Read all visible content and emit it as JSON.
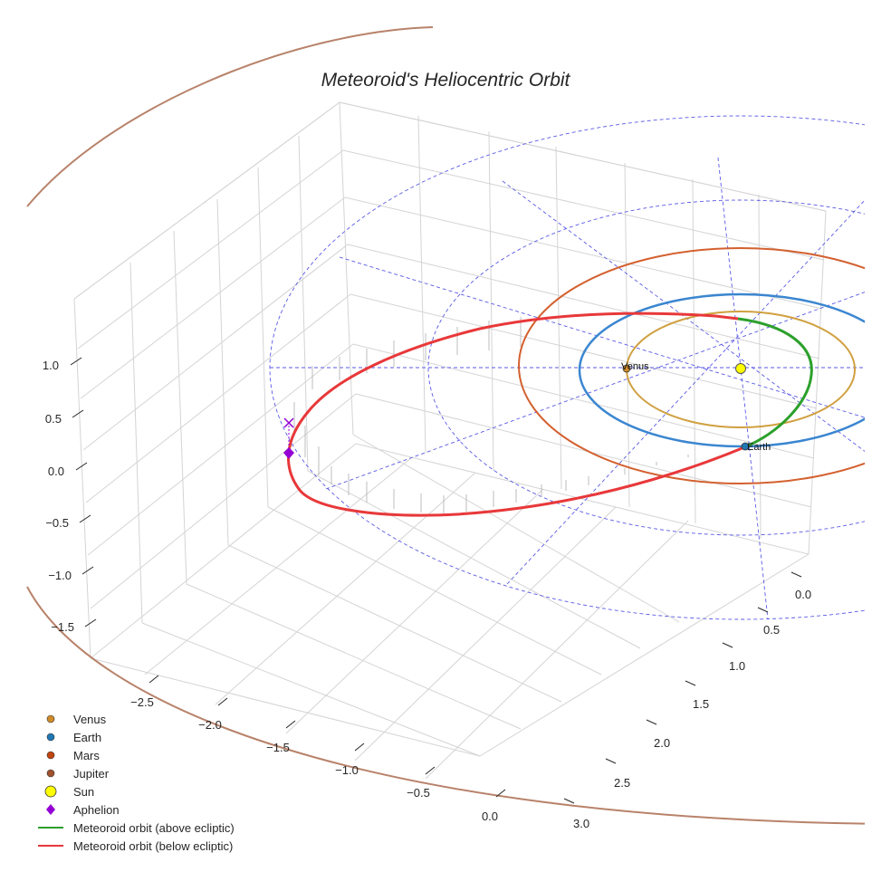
{
  "chart_data": {
    "type": "scatter",
    "title": "Meteoroid's Heliocentric Orbit",
    "projection": "3d",
    "axes": {
      "x": {
        "ticks": [
          "−2.5",
          "−2.0",
          "−1.5",
          "−1.0",
          "−0.5",
          "0.0"
        ],
        "range": [
          -2.9,
          0.6
        ]
      },
      "y": {
        "ticks": [
          "0.0",
          "0.5",
          "1.0",
          "1.5",
          "2.0",
          "2.5",
          "3.0"
        ],
        "range": [
          -0.2,
          3.1
        ]
      },
      "z": {
        "ticks": [
          "1.0",
          "0.5",
          "0.0",
          "−0.5",
          "−1.0",
          "−1.5"
        ],
        "range": [
          -1.7,
          1.3
        ]
      }
    },
    "bodies": [
      {
        "name": "Venus",
        "label": "Venus",
        "a_au": 0.72,
        "color": "#d08b2a"
      },
      {
        "name": "Earth",
        "label": "Earth",
        "a_au": 1.0,
        "color": "#1f77b4"
      },
      {
        "name": "Mars",
        "label": "",
        "a_au": 1.52,
        "color": "#d4602f"
      },
      {
        "name": "Jupiter",
        "label": "",
        "a_au": 5.2,
        "color": "#a0522d"
      },
      {
        "name": "Sun",
        "label": "",
        "a_au": 0.0,
        "color": "#ffff00"
      }
    ],
    "reference_circles_au": [
      1.6,
      2.6
    ],
    "meteoroid": {
      "perihelion_au": 0.55,
      "aphelion_au": 2.85,
      "segments": [
        {
          "name": "above ecliptic",
          "color": "#2ca02c"
        },
        {
          "name": "below ecliptic",
          "color": "#e8383a"
        }
      ],
      "aphelion_marker_color": "#9400d3"
    }
  },
  "legend": [
    {
      "label": "Venus",
      "marker": "circle",
      "color": "#d08b2a"
    },
    {
      "label": "Earth",
      "marker": "circle",
      "color": "#1f77b4"
    },
    {
      "label": "Mars",
      "marker": "circle",
      "color": "#c1440e"
    },
    {
      "label": "Jupiter",
      "marker": "circle",
      "color": "#a0522d"
    },
    {
      "label": "Sun",
      "marker": "circle-large",
      "color": "#ffff00"
    },
    {
      "label": "Aphelion",
      "marker": "diamond",
      "color": "#9400d3"
    },
    {
      "label": "Meteoroid orbit (above ecliptic)",
      "marker": "line",
      "color": "#2ca02c"
    },
    {
      "label": "Meteoroid orbit (below ecliptic)",
      "marker": "line",
      "color": "#e8383a"
    }
  ]
}
